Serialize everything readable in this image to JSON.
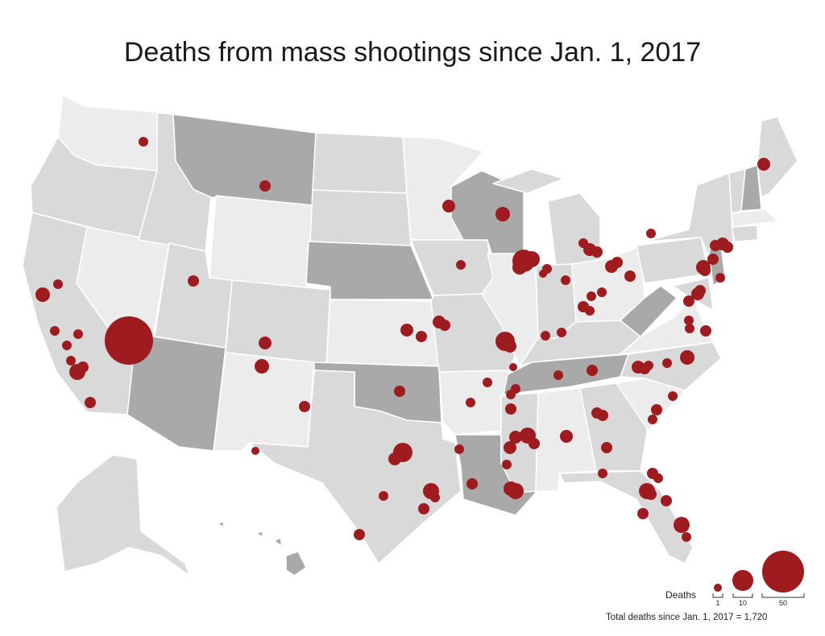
{
  "title": "Deaths from mass shootings since Jan. 1, 2017",
  "legend": {
    "label": "Deaths",
    "sizes": [
      {
        "value": "1",
        "deaths": 1
      },
      {
        "value": "10",
        "deaths": 10
      },
      {
        "value": "50",
        "deaths": 50
      }
    ]
  },
  "total_note": "Total deaths since Jan. 1, 2017 = 1,720",
  "colors": {
    "dot": "#9e1b1f",
    "state_shades": [
      "#ececed",
      "#d9d9da",
      "#c6c6c7",
      "#a9a9aa"
    ]
  },
  "map_note": "U.S. states shaded in grey; red circles sized by deaths at each location"
}
